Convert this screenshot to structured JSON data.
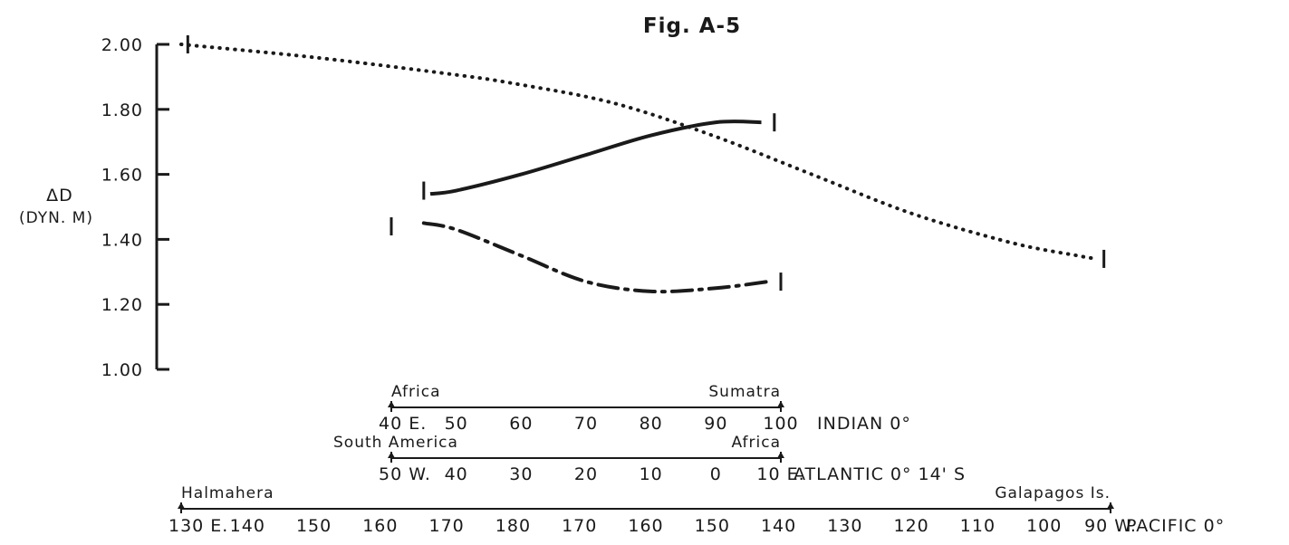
{
  "chart_data": {
    "type": "line",
    "title": "Fig. A-5",
    "ylabel": "ΔD",
    "ylabel_unit": "(DYN. M)",
    "ylim": [
      1.0,
      2.0
    ],
    "yticks": [
      {
        "value": 1.0,
        "label": "1.00"
      },
      {
        "value": 1.2,
        "label": "1.20"
      },
      {
        "value": 1.4,
        "label": "1.40"
      },
      {
        "value": 1.6,
        "label": "1.60"
      },
      {
        "value": 1.8,
        "label": "1.80"
      },
      {
        "value": 2.0,
        "label": "2.00"
      }
    ],
    "x_axes": [
      {
        "id": "indian",
        "name": "INDIAN 0°",
        "unit": "degrees longitude",
        "start_label": "Africa",
        "end_label": "Sumatra",
        "ticks": [
          {
            "value": 40,
            "label": "40 E."
          },
          {
            "value": 50,
            "label": "50"
          },
          {
            "value": 60,
            "label": "60"
          },
          {
            "value": 70,
            "label": "70"
          },
          {
            "value": 80,
            "label": "80"
          },
          {
            "value": 90,
            "label": "90"
          },
          {
            "value": 100,
            "label": "100"
          }
        ]
      },
      {
        "id": "atlantic",
        "name": "ATLANTIC 0° 14' S",
        "unit": "degrees longitude",
        "start_label": "South America",
        "end_label": "Africa",
        "ticks": [
          {
            "value": -50,
            "label": "50 W."
          },
          {
            "value": -40,
            "label": "40"
          },
          {
            "value": -30,
            "label": "30"
          },
          {
            "value": -20,
            "label": "20"
          },
          {
            "value": -10,
            "label": "10"
          },
          {
            "value": 0,
            "label": "0"
          },
          {
            "value": 10,
            "label": "10 E."
          }
        ]
      },
      {
        "id": "pacific",
        "name": "PACIFIC 0°",
        "unit": "degrees longitude",
        "start_label": "Halmahera",
        "end_label": "Galapagos Is.",
        "ticks": [
          {
            "value": 130,
            "label": "130 E."
          },
          {
            "value": 140,
            "label": "140"
          },
          {
            "value": 150,
            "label": "150"
          },
          {
            "value": 160,
            "label": "160"
          },
          {
            "value": 170,
            "label": "170"
          },
          {
            "value": 180,
            "label": "180"
          },
          {
            "value": 190,
            "label": "170"
          },
          {
            "value": 200,
            "label": "160"
          },
          {
            "value": 210,
            "label": "150"
          },
          {
            "value": 220,
            "label": "140"
          },
          {
            "value": 230,
            "label": "130"
          },
          {
            "value": 240,
            "label": "120"
          },
          {
            "value": 250,
            "label": "110"
          },
          {
            "value": 260,
            "label": "100"
          },
          {
            "value": 270,
            "label": "90 W."
          }
        ]
      }
    ],
    "series": [
      {
        "style": "dotted",
        "axis": "pacific",
        "points": [
          {
            "x": 130,
            "y": 2.0
          },
          {
            "x": 150,
            "y": 1.96
          },
          {
            "x": 170,
            "y": 1.91
          },
          {
            "x": 180,
            "y": 1.88
          },
          {
            "x": 195,
            "y": 1.82
          },
          {
            "x": 210,
            "y": 1.72
          },
          {
            "x": 225,
            "y": 1.6
          },
          {
            "x": 240,
            "y": 1.48
          },
          {
            "x": 255,
            "y": 1.39
          },
          {
            "x": 265,
            "y": 1.35
          },
          {
            "x": 268,
            "y": 1.34
          }
        ]
      },
      {
        "style": "solid",
        "axis": "indian",
        "points": [
          {
            "x": 46,
            "y": 1.54
          },
          {
            "x": 50,
            "y": 1.55
          },
          {
            "x": 60,
            "y": 1.6
          },
          {
            "x": 70,
            "y": 1.66
          },
          {
            "x": 80,
            "y": 1.72
          },
          {
            "x": 90,
            "y": 1.76
          },
          {
            "x": 97,
            "y": 1.76
          }
        ]
      },
      {
        "style": "dash-dot",
        "axis": "atlantic",
        "points": [
          {
            "x": -45,
            "y": 1.45
          },
          {
            "x": -40,
            "y": 1.43
          },
          {
            "x": -30,
            "y": 1.35
          },
          {
            "x": -20,
            "y": 1.27
          },
          {
            "x": -10,
            "y": 1.24
          },
          {
            "x": 0,
            "y": 1.25
          },
          {
            "x": 8,
            "y": 1.27
          }
        ]
      }
    ],
    "end_markers": [
      {
        "axis": "pacific",
        "x": 131,
        "y": 2.0
      },
      {
        "axis": "pacific",
        "x": 269,
        "y": 1.34
      },
      {
        "axis": "indian",
        "x": 45,
        "y": 1.55
      },
      {
        "axis": "indian",
        "x": 99,
        "y": 1.76
      },
      {
        "axis": "atlantic",
        "x": -50,
        "y": 1.44
      },
      {
        "axis": "atlantic",
        "x": 10,
        "y": 1.27
      }
    ],
    "grid": false
  }
}
